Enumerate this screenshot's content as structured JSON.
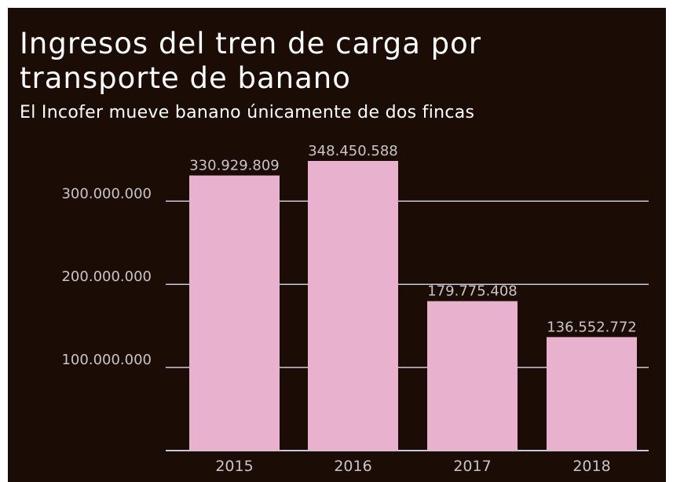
{
  "chart_data": {
    "type": "bar",
    "title": "Ingresos del tren de carga por transporte de banano",
    "subtitle": "El Incofer mueve banano únicamente de dos fincas",
    "categories": [
      "2015",
      "2016",
      "2017",
      "2018"
    ],
    "values": [
      330929809,
      348450588,
      179775408,
      136552772
    ],
    "value_labels": [
      "330.929.809",
      "348.450.588",
      "179.775.408",
      "136.552.772"
    ],
    "y_ticks": [
      100000000,
      200000000,
      300000000
    ],
    "y_tick_labels": [
      "100.000.000",
      "200.000.000",
      "300.000.000"
    ],
    "ylim": [
      0,
      348450588
    ],
    "grid": true,
    "xlabel": "",
    "ylabel": ""
  },
  "colors": {
    "background": "#1c0c06",
    "bar": "#e8b2cf",
    "text": "#ffffff",
    "muted_text": "#c9c4c7",
    "gridline": "#c8c8dc"
  }
}
